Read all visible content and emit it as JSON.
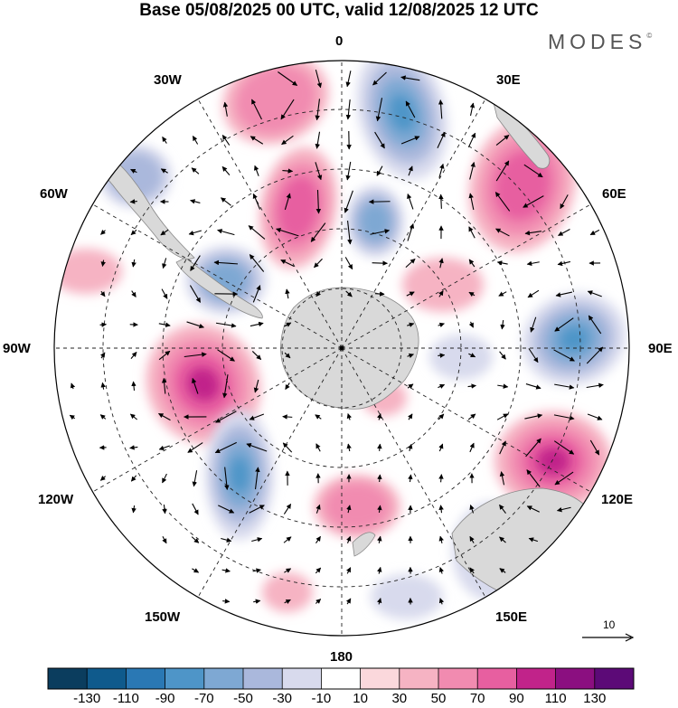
{
  "header": {
    "title": "Base 05/08/2025 00 UTC, valid 12/08/2025 12 UTC",
    "brand": "MODES",
    "brand_mark": "©"
  },
  "map": {
    "projection": "south-polar-stereographic",
    "longitude_labels": {
      "lon_0": "0",
      "lon_30e": "30E",
      "lon_60e": "60E",
      "lon_90e": "90E",
      "lon_120e": "120E",
      "lon_150e": "150E",
      "lon_180": "180",
      "lon_150w": "150W",
      "lon_120w": "120W",
      "lon_90w": "90W",
      "lon_60w": "60W",
      "lon_30w": "30W"
    },
    "land_color": "#d9d9d9",
    "grid_color": "#222222"
  },
  "wind_reference": {
    "value": "10"
  },
  "colorbar": {
    "colors": [
      "#0b3d5e",
      "#0f5a8c",
      "#2a78b4",
      "#4e95c8",
      "#7ea8d3",
      "#aab8dc",
      "#d8daed",
      "#ffffff",
      "#fbd8dc",
      "#f6b3c3",
      "#f18bb0",
      "#e75fa0",
      "#c1238a",
      "#8b0f80",
      "#5c0a77"
    ],
    "tick_labels": [
      "-130",
      "-110",
      "-90",
      "-70",
      "-50",
      "-30",
      "-10",
      "10",
      "30",
      "50",
      "70",
      "90",
      "110",
      "130"
    ]
  }
}
